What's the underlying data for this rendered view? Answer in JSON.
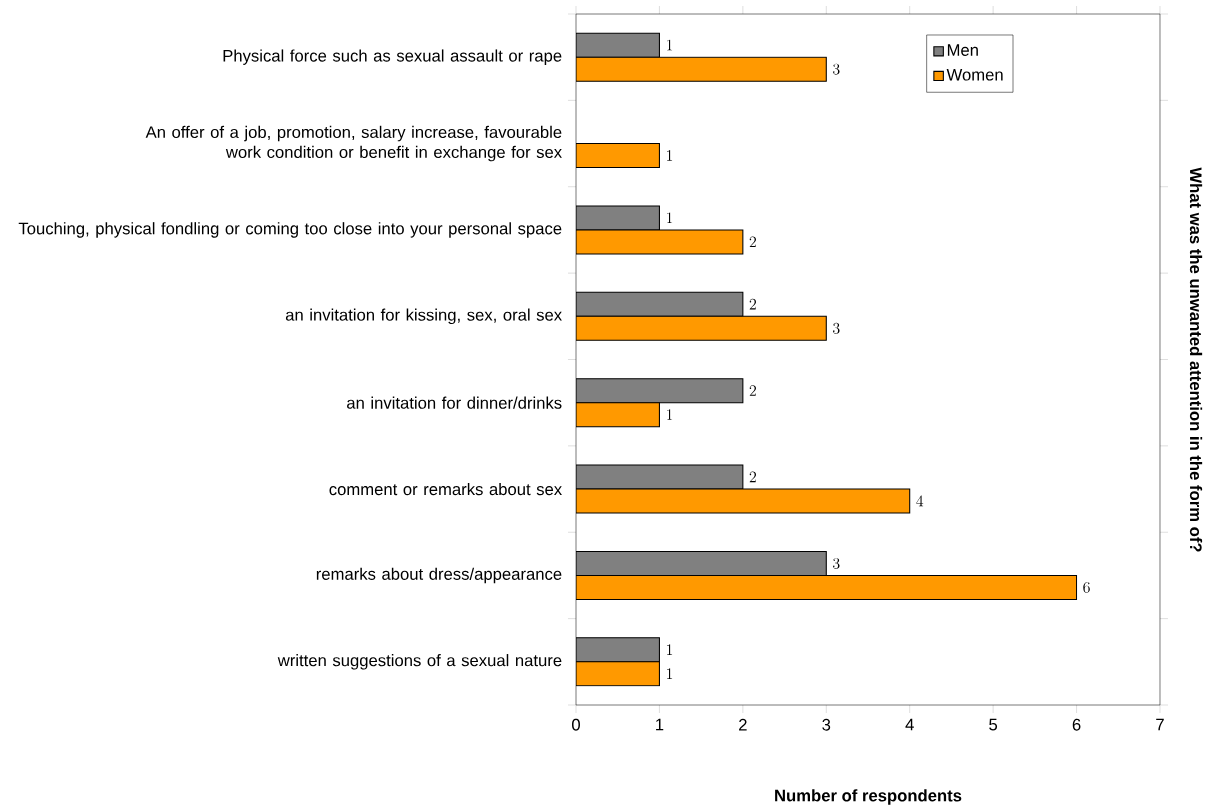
{
  "chart_data": {
    "type": "bar",
    "orientation": "horizontal",
    "categories": [
      "Physical force such as sexual assault or rape",
      "An offer of a job, promotion, salary increase, favourable work condition or benefit in exchange for sex",
      "Touching, physical fondling or coming too close into your personal space",
      "an invitation for kissing, sex, oral sex",
      "an invitation for dinner/drinks",
      "comment or remarks about sex",
      "remarks about dress/appearance",
      "written suggestions of a sexual nature"
    ],
    "series": [
      {
        "name": "Men",
        "color": "#808080",
        "values": [
          1,
          null,
          1,
          2,
          2,
          2,
          3,
          1
        ]
      },
      {
        "name": "Women",
        "color": "#ff9900",
        "values": [
          3,
          1,
          2,
          3,
          1,
          4,
          6,
          1
        ]
      }
    ],
    "xlim": [
      0,
      7
    ],
    "xticks": [
      0,
      1,
      2,
      3,
      4,
      5,
      6,
      7
    ],
    "xlabel": "Number of respondents",
    "ylabel": "What was the unwanted attention in the form of?",
    "data_labels": true,
    "legend": "top right",
    "grid": false
  }
}
